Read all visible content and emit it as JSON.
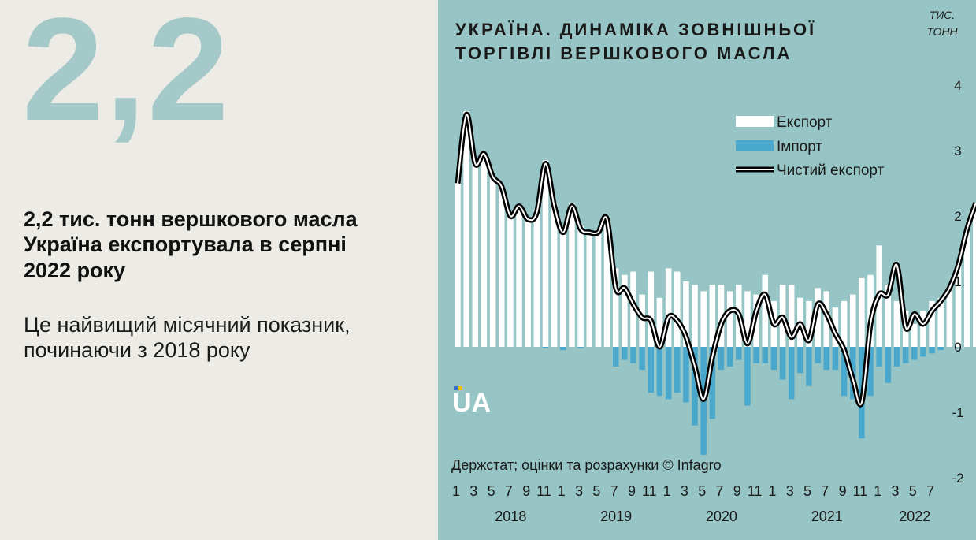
{
  "left": {
    "big_number": "2,2",
    "headline": "2,2 тис. тонн вершкового масла Україна експортувала в серпні 2022 року",
    "subtext": "Це найвищий місячний показник, починаючи з 2018 року"
  },
  "chart_data": {
    "type": "bar",
    "title_lines": [
      "УКРАЇНА. ДИНАМІКА ЗОВНІШНЬОЇ",
      "ТОРГІВЛІ ВЕРШКОВОГО МАСЛА"
    ],
    "unit_lines": [
      "ТИС.",
      "ТОНН"
    ],
    "ylim": [
      -2,
      4
    ],
    "yticks": [
      4,
      3,
      2,
      1,
      0,
      -1,
      -2
    ],
    "x_month_labels": [
      "1",
      "3",
      "5",
      "7",
      "9",
      "11",
      "1",
      "3",
      "5",
      "7",
      "9",
      "11",
      "1",
      "3",
      "5",
      "7",
      "9",
      "11",
      "1",
      "3",
      "5",
      "7",
      "9",
      "11",
      "1",
      "3",
      "5",
      "7"
    ],
    "year_labels": [
      "2018",
      "2019",
      "2020",
      "2021",
      "2022"
    ],
    "legend": [
      {
        "name": "Експорт",
        "color": "#ffffff"
      },
      {
        "name": "Імпорт",
        "color": "#4aa8cd"
      },
      {
        "name": "Чистий експорт",
        "color": "#000000"
      }
    ],
    "legend_position": "top-right",
    "source": "Держстат; оцінки та розрахунки © Infagro",
    "logo_text": "UA",
    "series": [
      {
        "name": "Експорт",
        "values": [
          2.5,
          3.6,
          2.85,
          2.95,
          2.6,
          2.45,
          2.05,
          2.15,
          1.95,
          2.1,
          2.85,
          2.2,
          1.8,
          2.2,
          1.85,
          1.75,
          1.8,
          1.95,
          1.2,
          1.1,
          1.15,
          0.8,
          1.15,
          0.75,
          1.2,
          1.15,
          1.0,
          0.95,
          0.85,
          0.95,
          0.95,
          0.85,
          0.95,
          0.85,
          0.8,
          1.1,
          0.7,
          0.95,
          0.95,
          0.75,
          0.7,
          0.9,
          0.85,
          0.6,
          0.7,
          0.8,
          1.05,
          1.1,
          1.55,
          0.95,
          0.7,
          0.55,
          0.35,
          0.55,
          0.7,
          0.75,
          0.9,
          1.25,
          1.8,
          2.2
        ]
      },
      {
        "name": "Імпорт",
        "values": [
          0,
          0,
          0,
          0,
          0,
          0,
          0,
          0,
          0,
          0,
          -0.02,
          0,
          -0.05,
          0,
          -0.02,
          0,
          0,
          0,
          -0.3,
          -0.2,
          -0.25,
          -0.35,
          -0.7,
          -0.75,
          -0.8,
          -0.7,
          -0.85,
          -1.2,
          -1.65,
          -1.1,
          -0.35,
          -0.3,
          -0.2,
          -0.9,
          -0.25,
          -0.25,
          -0.35,
          -0.5,
          -0.8,
          -0.4,
          -0.6,
          -0.25,
          -0.35,
          -0.35,
          -0.75,
          -0.8,
          -1.4,
          -0.75,
          -0.3,
          -0.55,
          -0.3,
          -0.25,
          -0.2,
          -0.15,
          -0.1,
          -0.05,
          0,
          0,
          0,
          0
        ]
      },
      {
        "name": "Чистий експорт",
        "values": [
          2.5,
          3.55,
          2.8,
          2.95,
          2.6,
          2.45,
          2.0,
          2.15,
          1.95,
          2.05,
          2.8,
          2.15,
          1.75,
          2.15,
          1.8,
          1.75,
          1.75,
          1.95,
          0.9,
          0.9,
          0.65,
          0.45,
          0.4,
          0.0,
          0.45,
          0.4,
          0.15,
          -0.3,
          -0.8,
          -0.15,
          0.35,
          0.55,
          0.5,
          0.05,
          0.55,
          0.8,
          0.35,
          0.45,
          0.15,
          0.35,
          0.1,
          0.65,
          0.5,
          0.2,
          -0.05,
          -0.5,
          -0.85,
          0.35,
          0.8,
          0.8,
          1.25,
          0.3,
          0.5,
          0.35,
          0.55,
          0.7,
          0.9,
          1.25,
          1.8,
          2.2
        ]
      }
    ]
  }
}
